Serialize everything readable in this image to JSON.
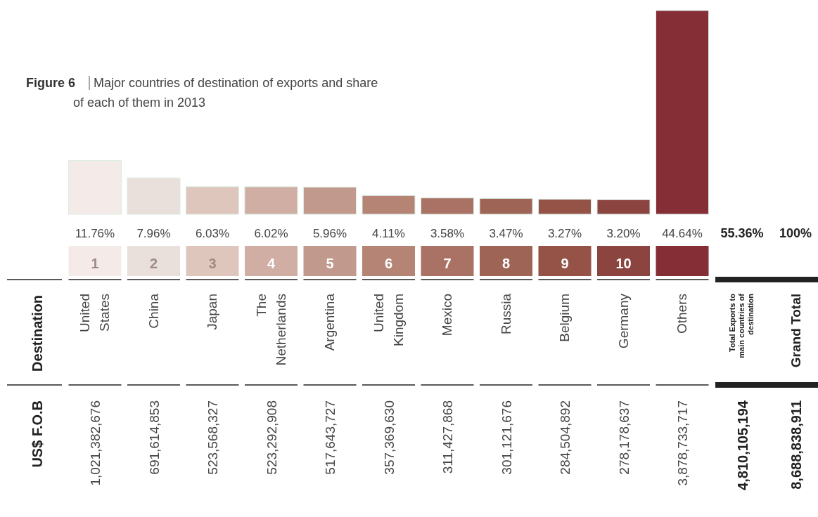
{
  "chart_data": {
    "type": "bar",
    "title": "Figure 6",
    "subtitle": "Major countries of destination of exports and share of each of them in 2013",
    "categories": [
      "United States",
      "China",
      "Japan",
      "The Netherlands",
      "Argentina",
      "United Kingdom",
      "Mexico",
      "Russia",
      "Belgium",
      "Germany",
      "Others"
    ],
    "values": [
      11.76,
      7.96,
      6.03,
      6.02,
      5.96,
      4.11,
      3.58,
      3.47,
      3.27,
      3.2,
      44.64
    ],
    "value_labels": [
      "11.76%",
      "7.96%",
      "6.03%",
      "6.02%",
      "5.96%",
      "4.11%",
      "3.58%",
      "3.47%",
      "3.27%",
      "3.20%",
      "44.64%"
    ],
    "colors": [
      "#f4ebe8",
      "#e9dfdb",
      "#dfc6bd",
      "#d0aea3",
      "#c2998d",
      "#b68475",
      "#a97264",
      "#9e6455",
      "#955247",
      "#8b4440",
      "#862e36"
    ],
    "annotations": [
      "Destination",
      "US$ F.O.B",
      "1",
      "2",
      "3",
      "4",
      "5",
      "6",
      "7",
      "8",
      "9",
      "10",
      "1,021,382,676",
      "691,614,853",
      "523,568,327",
      "523,292,908",
      "517,643,727",
      "357,369,630",
      "311,427,868",
      "301,121,676",
      "284,504,892",
      "278,178,637",
      "3,878,733,717",
      "55.36%",
      "100%",
      "Total Exports to main countries of destination",
      "Grand Total",
      "4,810,105,194",
      "8,688,838,911"
    ]
  }
}
